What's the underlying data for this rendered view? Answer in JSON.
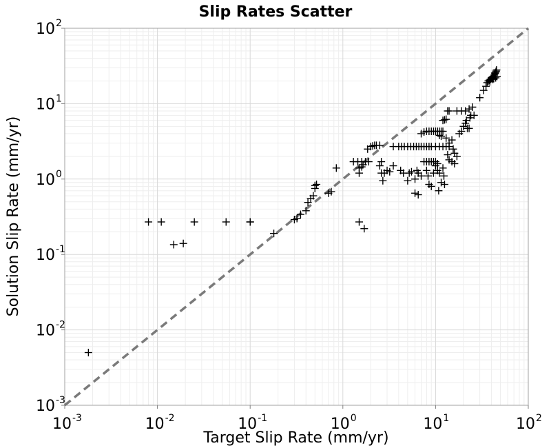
{
  "chart_data": {
    "type": "scatter",
    "title": "Slip Rates Scatter",
    "xlabel": "Target Slip Rate (mm/yr)",
    "ylabel": "Solution Slip Rate (mm/yr)",
    "xscale": "log",
    "yscale": "log",
    "xlim": [
      0.001,
      100
    ],
    "ylim": [
      0.001,
      100
    ],
    "grid": true,
    "legend": "none",
    "marker": "plus",
    "marker_color": "#000000",
    "x_ticks": [
      {
        "base": "10",
        "exp": "-3"
      },
      {
        "base": "10",
        "exp": "-2"
      },
      {
        "base": "10",
        "exp": "-1"
      },
      {
        "base": "10",
        "exp": "0"
      },
      {
        "base": "10",
        "exp": "1"
      },
      {
        "base": "10",
        "exp": "2"
      }
    ],
    "y_ticks": [
      {
        "base": "10",
        "exp": "-3"
      },
      {
        "base": "10",
        "exp": "-2"
      },
      {
        "base": "10",
        "exp": "-1"
      },
      {
        "base": "10",
        "exp": "0"
      },
      {
        "base": "10",
        "exp": "1"
      },
      {
        "base": "10",
        "exp": "2"
      }
    ],
    "reference_line": {
      "style": "dashed",
      "color": "#7a7a7a",
      "from": [
        0.001,
        0.001
      ],
      "to": [
        100,
        100
      ]
    },
    "points": [
      [
        0.0018,
        0.005
      ],
      [
        0.008,
        0.27
      ],
      [
        0.011,
        0.27
      ],
      [
        0.025,
        0.27
      ],
      [
        0.055,
        0.27
      ],
      [
        0.1,
        0.27
      ],
      [
        0.1,
        0.27
      ],
      [
        0.015,
        0.135
      ],
      [
        0.019,
        0.14
      ],
      [
        0.18,
        0.19
      ],
      [
        0.3,
        0.29
      ],
      [
        0.32,
        0.3
      ],
      [
        0.35,
        0.34
      ],
      [
        0.4,
        0.38
      ],
      [
        0.42,
        0.49
      ],
      [
        0.45,
        0.55
      ],
      [
        0.48,
        0.6
      ],
      [
        0.5,
        0.75
      ],
      [
        0.5,
        0.82
      ],
      [
        0.52,
        0.85
      ],
      [
        0.7,
        0.65
      ],
      [
        0.75,
        0.68
      ],
      [
        0.85,
        1.4
      ],
      [
        1.5,
        0.27
      ],
      [
        1.7,
        0.22
      ],
      [
        1.3,
        1.7
      ],
      [
        1.45,
        1.7
      ],
      [
        1.6,
        1.7
      ],
      [
        1.75,
        1.7
      ],
      [
        1.9,
        1.7
      ],
      [
        1.5,
        1.2
      ],
      [
        1.5,
        1.4
      ],
      [
        1.6,
        1.45
      ],
      [
        1.65,
        1.55
      ],
      [
        1.85,
        2.5
      ],
      [
        2.0,
        2.7
      ],
      [
        2.1,
        2.75
      ],
      [
        2.2,
        2.8
      ],
      [
        2.3,
        2.8
      ],
      [
        2.5,
        2.8
      ],
      [
        2.5,
        1.5
      ],
      [
        2.6,
        1.2
      ],
      [
        2.8,
        1.2
      ],
      [
        3.0,
        1.3
      ],
      [
        3.2,
        1.25
      ],
      [
        3.5,
        1.5
      ],
      [
        2.7,
        0.95
      ],
      [
        2.6,
        1.7
      ],
      [
        3.5,
        2.7
      ],
      [
        4.0,
        2.7
      ],
      [
        4.3,
        2.7
      ],
      [
        4.6,
        2.7
      ],
      [
        5.0,
        2.7
      ],
      [
        5.4,
        2.7
      ],
      [
        5.8,
        2.7
      ],
      [
        6.2,
        2.7
      ],
      [
        6.6,
        2.7
      ],
      [
        7.0,
        2.7
      ],
      [
        7.5,
        2.7
      ],
      [
        8.0,
        2.7
      ],
      [
        8.5,
        2.7
      ],
      [
        9.0,
        2.7
      ],
      [
        10.0,
        2.7
      ],
      [
        11.0,
        2.7
      ],
      [
        12.0,
        2.7
      ],
      [
        13.0,
        2.7
      ],
      [
        14.0,
        2.7
      ],
      [
        4.2,
        1.3
      ],
      [
        4.5,
        1.2
      ],
      [
        5.0,
        0.95
      ],
      [
        5.2,
        1.2
      ],
      [
        5.5,
        1.25
      ],
      [
        6.0,
        1.0
      ],
      [
        6.3,
        1.3
      ],
      [
        6.5,
        1.2
      ],
      [
        6.0,
        0.65
      ],
      [
        6.5,
        0.62
      ],
      [
        7.0,
        1.1
      ],
      [
        7.5,
        1.7
      ],
      [
        8.0,
        1.3
      ],
      [
        8.3,
        1.1
      ],
      [
        8.5,
        0.85
      ],
      [
        9.0,
        0.8
      ],
      [
        9.5,
        1.2
      ],
      [
        10.0,
        1.5
      ],
      [
        10.5,
        1.3
      ],
      [
        11.0,
        1.2
      ],
      [
        11.5,
        0.9
      ],
      [
        12.0,
        1.4
      ],
      [
        12.3,
        1.1
      ],
      [
        12.5,
        0.85
      ],
      [
        10.8,
        0.7
      ],
      [
        8.0,
        1.7
      ],
      [
        8.5,
        1.7
      ],
      [
        9.0,
        1.7
      ],
      [
        9.5,
        1.7
      ],
      [
        10.0,
        1.7
      ],
      [
        10.5,
        1.6
      ],
      [
        7.0,
        4.0
      ],
      [
        7.5,
        4.2
      ],
      [
        8.0,
        4.3
      ],
      [
        8.5,
        4.3
      ],
      [
        9.0,
        4.3
      ],
      [
        9.5,
        4.3
      ],
      [
        10.0,
        4.3
      ],
      [
        10.5,
        4.3
      ],
      [
        11.0,
        4.3
      ],
      [
        11.5,
        4.3
      ],
      [
        12.0,
        4.3
      ],
      [
        11.0,
        3.8
      ],
      [
        11.5,
        3.7
      ],
      [
        13.0,
        3.5
      ],
      [
        14.0,
        3.0
      ],
      [
        15.0,
        3.3
      ],
      [
        15.5,
        2.5
      ],
      [
        16.0,
        2.2
      ],
      [
        13.5,
        2.1
      ],
      [
        14.0,
        1.8
      ],
      [
        15.0,
        1.7
      ],
      [
        16.0,
        1.6
      ],
      [
        17.0,
        2.0
      ],
      [
        18.0,
        4.0
      ],
      [
        19.0,
        4.3
      ],
      [
        12.0,
        6.0
      ],
      [
        12.5,
        6.1
      ],
      [
        13.0,
        6.2
      ],
      [
        13.5,
        8.0
      ],
      [
        14.0,
        8.0
      ],
      [
        17.0,
        8.0
      ],
      [
        19.0,
        8.0
      ],
      [
        21.0,
        8.0
      ],
      [
        23.0,
        8.5
      ],
      [
        20.0,
        5.0
      ],
      [
        21.0,
        5.5
      ],
      [
        21.5,
        6.0
      ],
      [
        22.0,
        4.7
      ],
      [
        23.0,
        4.7
      ],
      [
        23.5,
        6.5
      ],
      [
        24.0,
        7.0
      ],
      [
        26.0,
        7.0
      ],
      [
        25.0,
        9.0
      ],
      [
        30.0,
        12.0
      ],
      [
        33.0,
        15.0
      ],
      [
        35.0,
        17.0
      ],
      [
        36.0,
        19.0
      ],
      [
        37.0,
        20.0
      ],
      [
        38.0,
        20.5
      ],
      [
        39.0,
        21.0
      ],
      [
        40.0,
        21.5
      ],
      [
        40.5,
        22.0
      ],
      [
        41.0,
        22.5
      ],
      [
        42.0,
        23.0
      ],
      [
        43.0,
        24.0
      ],
      [
        44.0,
        25.0
      ],
      [
        44.5,
        26.0
      ],
      [
        45.0,
        27.0
      ],
      [
        45.5,
        28.0
      ],
      [
        38.5,
        19.5
      ],
      [
        41.5,
        21.0
      ],
      [
        43.5,
        25.5
      ],
      [
        46.0,
        23.0
      ],
      [
        44.5,
        22.0
      ],
      [
        42.5,
        21.5
      ]
    ]
  }
}
